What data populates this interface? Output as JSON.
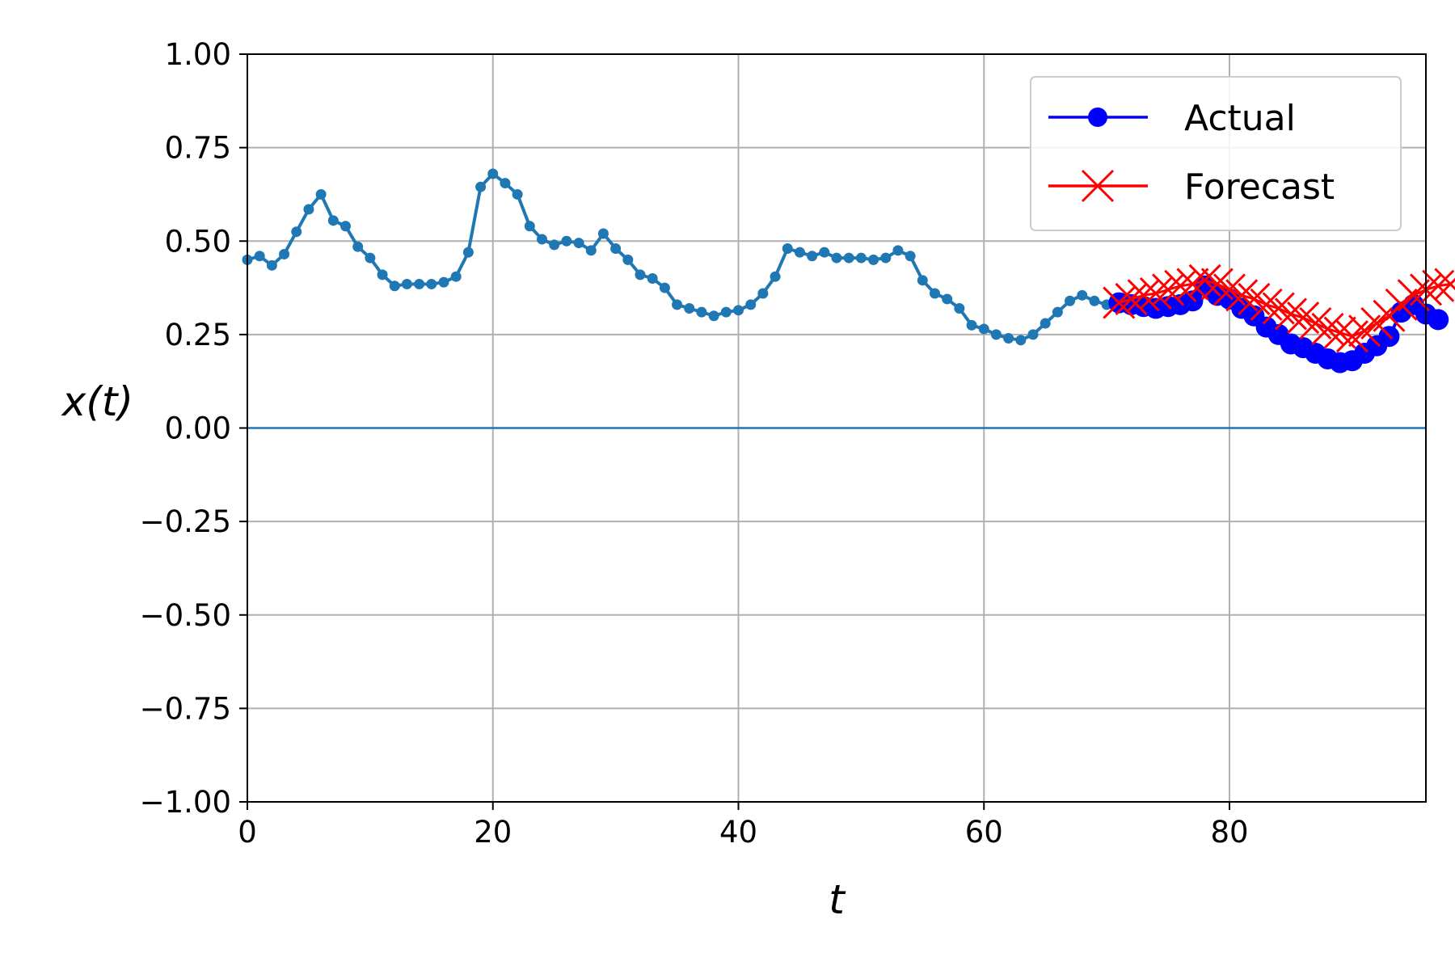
{
  "chart_data": {
    "type": "line",
    "title": "",
    "xlabel": "t",
    "ylabel": "x(t)",
    "xlim": [
      0,
      96
    ],
    "ylim": [
      -1.0,
      1.0
    ],
    "grid": true,
    "legend_position": "top-right",
    "x_ticks": [
      0,
      20,
      40,
      60,
      80
    ],
    "x_tick_labels": [
      "0",
      "20",
      "40",
      "60",
      "80"
    ],
    "y_ticks": [
      -1.0,
      -0.75,
      -0.5,
      -0.25,
      0.0,
      0.25,
      0.5,
      0.75,
      1.0
    ],
    "y_tick_labels": [
      "−1.00",
      "−0.75",
      "−0.50",
      "−0.25",
      "0.00",
      "0.25",
      "0.50",
      "0.75",
      "1.00"
    ],
    "horizontal_line": {
      "y": 0.0,
      "color": "#1f77b4"
    },
    "history": {
      "color": "#1f77b4",
      "x_start": 0,
      "values": [
        0.45,
        0.46,
        0.435,
        0.465,
        0.525,
        0.585,
        0.625,
        0.555,
        0.54,
        0.485,
        0.455,
        0.41,
        0.38,
        0.385,
        0.385,
        0.385,
        0.39,
        0.405,
        0.47,
        0.645,
        0.68,
        0.655,
        0.625,
        0.54,
        0.505,
        0.49,
        0.5,
        0.495,
        0.475,
        0.52,
        0.48,
        0.45,
        0.41,
        0.4,
        0.375,
        0.33,
        0.32,
        0.31,
        0.3,
        0.31,
        0.315,
        0.33,
        0.36,
        0.405,
        0.48,
        0.47,
        0.46,
        0.47,
        0.455,
        0.455,
        0.455,
        0.45,
        0.455,
        0.475,
        0.46,
        0.395,
        0.36,
        0.345,
        0.32,
        0.275,
        0.265,
        0.25,
        0.24,
        0.235,
        0.25,
        0.28,
        0.31,
        0.34,
        0.355,
        0.34,
        0.33
      ]
    },
    "series": [
      {
        "name": "Actual",
        "color": "#0000ff",
        "marker": "circle",
        "x_start": 71,
        "values": [
          0.335,
          0.33,
          0.325,
          0.32,
          0.325,
          0.33,
          0.34,
          0.38,
          0.355,
          0.345,
          0.32,
          0.3,
          0.27,
          0.25,
          0.225,
          0.215,
          0.2,
          0.185,
          0.175,
          0.18,
          0.2,
          0.22,
          0.245,
          0.31,
          0.33,
          0.305,
          0.29
        ]
      },
      {
        "name": "Forecast",
        "color": "#ff0000",
        "marker": "x",
        "x_start": 71,
        "values": [
          0.335,
          0.345,
          0.355,
          0.36,
          0.37,
          0.38,
          0.385,
          0.395,
          0.385,
          0.37,
          0.355,
          0.345,
          0.33,
          0.32,
          0.305,
          0.295,
          0.28,
          0.265,
          0.255,
          0.245,
          0.26,
          0.28,
          0.3,
          0.33,
          0.355,
          0.37,
          0.38,
          0.385
        ]
      }
    ]
  }
}
